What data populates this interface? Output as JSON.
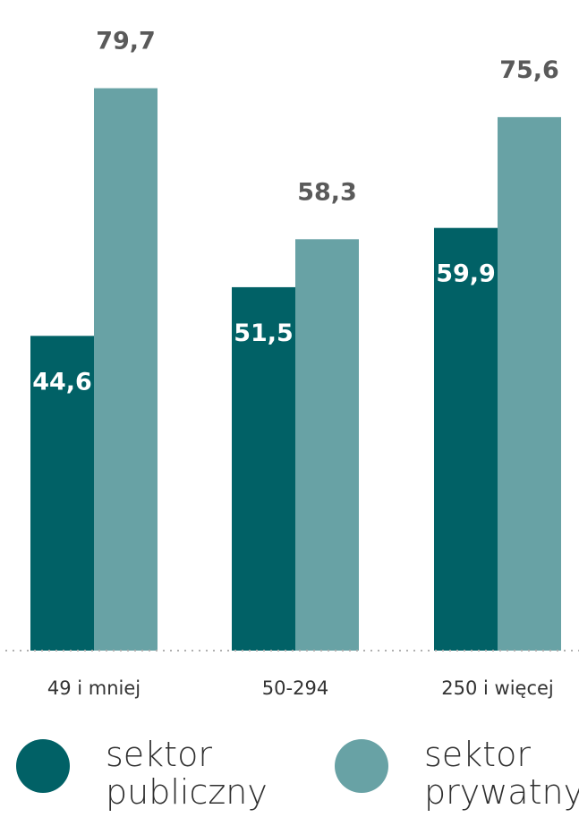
{
  "chart_data": {
    "type": "bar",
    "categories": [
      "49 i mniej",
      "50-294",
      "250 i więcej"
    ],
    "series": [
      {
        "name": "sektor publiczny",
        "values": [
          44.6,
          51.5,
          59.9
        ],
        "labels": [
          "44,6",
          "51,5",
          "59,9"
        ],
        "color": "#016166"
      },
      {
        "name": "sektor prywatny",
        "values": [
          79.7,
          58.3,
          75.6
        ],
        "labels": [
          "79,7",
          "58,3",
          "75,6"
        ],
        "color": "#68a2a5"
      }
    ],
    "title": "",
    "xlabel": "",
    "ylabel": "",
    "ylim": [
      0,
      80
    ],
    "grid": false,
    "legend": "bottom"
  },
  "legend": {
    "items": [
      {
        "line1": "sektor",
        "line2": "publiczny",
        "color": "#016166"
      },
      {
        "line1": "sektor",
        "line2": "prywatny",
        "color": "#68a2a5"
      }
    ]
  },
  "colors": {
    "label_dark": "#5a5a5a",
    "label_light": "#ffffff",
    "category_text": "#333333",
    "baseline": "#b0b0b0"
  }
}
